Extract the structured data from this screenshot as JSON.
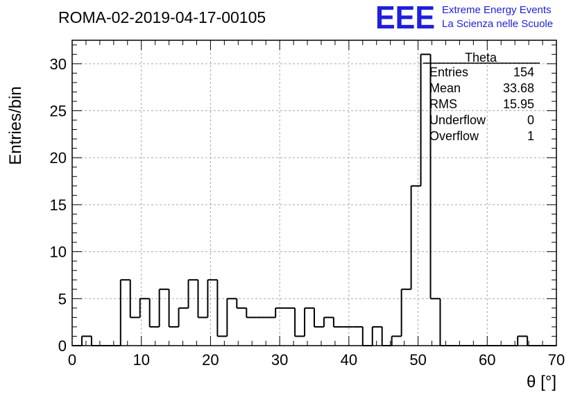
{
  "title": "ROMA-02-2019-04-17-00105",
  "logo": {
    "mark": "EEE",
    "line1": "Extreme Energy Events",
    "line2": "La Scienza nelle Scuole",
    "color": "#1f1fdc"
  },
  "chart_data": {
    "type": "histogram",
    "xlabel": "θ [°]",
    "ylabel": "Entries/bin",
    "xlim": [
      0,
      70
    ],
    "ylim": [
      0,
      32.5
    ],
    "x_ticks": [
      0,
      10,
      20,
      30,
      40,
      50,
      60,
      70
    ],
    "y_ticks": [
      0,
      5,
      10,
      15,
      20,
      25,
      30
    ],
    "grid": true,
    "bin_width": 1.4,
    "bin_counts": [
      0,
      1,
      0,
      0,
      0,
      7,
      3,
      5,
      2,
      6,
      2,
      4,
      7,
      3,
      7,
      1,
      5,
      4,
      3,
      3,
      3,
      4,
      4,
      1,
      4,
      2,
      3,
      2,
      2,
      2,
      0,
      2,
      0,
      1,
      6,
      17,
      31,
      5,
      0,
      0,
      0,
      0,
      0,
      0,
      0,
      0,
      1,
      0,
      0,
      0
    ],
    "line_color": "#000000",
    "stats_box": {
      "name": "Theta",
      "placement": "top-right",
      "rows": [
        {
          "label": "Entries",
          "value": "154"
        },
        {
          "label": "Mean",
          "value": "33.68"
        },
        {
          "label": "RMS",
          "value": "15.95"
        },
        {
          "label": "Underflow",
          "value": "0"
        },
        {
          "label": "Overflow",
          "value": "1"
        }
      ]
    }
  }
}
